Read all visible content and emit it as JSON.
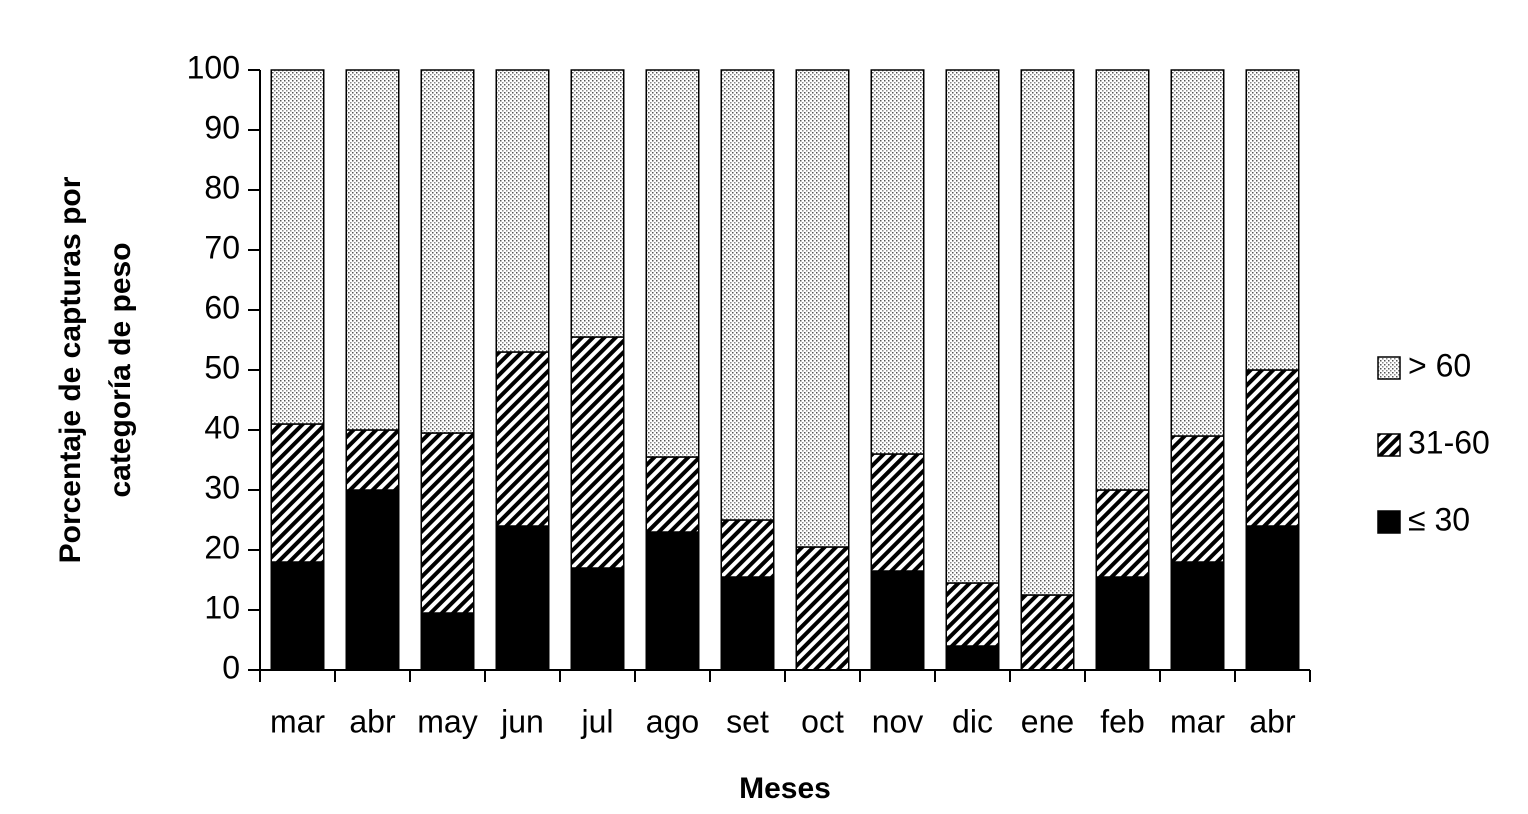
{
  "chart_data": {
    "type": "stacked_bar",
    "xlabel": "Meses",
    "ylabel": [
      "Porcentaje de capturas por",
      "categoría de peso"
    ],
    "categories": [
      "mar",
      "abr",
      "may",
      "jun",
      "jul",
      "ago",
      "set",
      "oct",
      "nov",
      "dic",
      "ene",
      "feb",
      "mar",
      "abr"
    ],
    "series": [
      {
        "name": "≤ 30",
        "color": "#000000",
        "pattern": "solid",
        "values": [
          18,
          30,
          9.5,
          24,
          17,
          23,
          15.5,
          0,
          16.5,
          4,
          0,
          15.5,
          18,
          24
        ]
      },
      {
        "name": "31-60",
        "color": "#000000",
        "pattern": "hatch",
        "values": [
          23,
          10,
          30,
          29,
          38.5,
          12.5,
          9.5,
          20.5,
          19.5,
          10.5,
          12.5,
          14.5,
          21,
          26
        ]
      },
      {
        "name": "> 60",
        "color": "#000000",
        "pattern": "dots",
        "values": [
          59,
          60,
          60.5,
          47,
          44.5,
          64.5,
          75,
          79.5,
          64,
          85.5,
          87.5,
          70,
          61,
          50
        ]
      }
    ],
    "ylim": [
      0,
      100
    ],
    "yticks": [
      0,
      10,
      20,
      30,
      40,
      50,
      60,
      70,
      80,
      90,
      100
    ],
    "legend": "right"
  }
}
